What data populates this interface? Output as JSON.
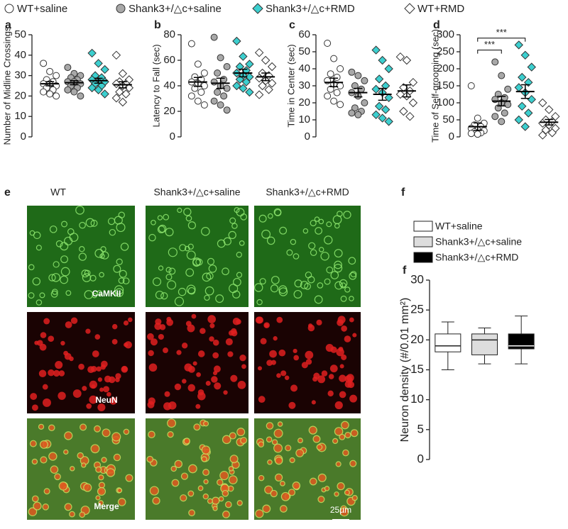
{
  "legend": [
    {
      "name": "WT+saline",
      "color": "#ffffff",
      "marker": "circle"
    },
    {
      "name": "Shank3+/△c+saline",
      "color": "#a8a8a8",
      "marker": "circle"
    },
    {
      "name": "Shank3+/△c+RMD",
      "color": "#3ccfcf",
      "marker": "diamond"
    },
    {
      "name": "WT+RMD",
      "color": "#ffffff",
      "marker": "diamond"
    }
  ],
  "chart_data": [
    {
      "type": "dot",
      "panel": "a",
      "ylabel": "Number of Midline Crossings",
      "ylim": [
        0,
        50
      ],
      "yticks": [
        0,
        10,
        20,
        30,
        40,
        50
      ],
      "groups": [
        {
          "values": [
            36,
            32,
            30,
            28,
            27,
            26,
            26,
            25,
            24,
            23,
            22,
            21,
            20
          ],
          "mean": 26,
          "sem": 1
        },
        {
          "values": [
            34,
            31,
            30,
            29,
            28,
            27,
            27,
            26,
            25,
            24,
            23,
            22,
            20
          ],
          "mean": 26.5,
          "sem": 1
        },
        {
          "values": [
            41,
            36,
            33,
            30,
            29,
            28,
            27,
            27,
            26,
            25,
            24,
            23,
            21
          ],
          "mean": 27.5,
          "sem": 1.2
        },
        {
          "values": [
            40,
            31,
            28,
            27,
            26,
            26,
            25,
            24,
            22,
            21,
            19,
            17
          ],
          "mean": 25.5,
          "sem": 1.5
        }
      ]
    },
    {
      "type": "dot",
      "panel": "b",
      "ylabel": "Latency to Fall (sec)",
      "ylim": [
        0,
        80
      ],
      "yticks": [
        0,
        20,
        40,
        60,
        80
      ],
      "groups": [
        {
          "values": [
            73,
            57,
            50,
            47,
            45,
            43,
            42,
            40,
            38,
            35,
            32,
            28,
            25
          ],
          "mean": 43,
          "sem": 3.5
        },
        {
          "values": [
            78,
            62,
            55,
            50,
            45,
            43,
            40,
            38,
            35,
            32,
            28,
            25,
            21
          ],
          "mean": 42,
          "sem": 4
        },
        {
          "values": [
            75,
            63,
            57,
            55,
            52,
            50,
            48,
            47,
            45,
            43,
            40,
            38,
            35
          ],
          "mean": 50,
          "sem": 3
        },
        {
          "values": [
            66,
            60,
            55,
            50,
            48,
            46,
            44,
            42,
            40,
            37,
            33
          ],
          "mean": 47,
          "sem": 3
        }
      ]
    },
    {
      "type": "dot",
      "panel": "c",
      "ylabel": "Time in Center (sec)",
      "ylim": [
        0,
        60
      ],
      "yticks": [
        0,
        10,
        20,
        30,
        40,
        50,
        60
      ],
      "groups": [
        {
          "values": [
            55,
            46,
            40,
            37,
            35,
            33,
            31,
            30,
            28,
            26,
            24,
            21,
            19
          ],
          "mean": 32,
          "sem": 2.5
        },
        {
          "values": [
            38,
            36,
            33,
            30,
            28,
            26,
            24,
            20,
            17,
            15,
            14,
            13
          ],
          "mean": 26,
          "sem": 2.5
        },
        {
          "values": [
            51,
            45,
            40,
            34,
            30,
            28,
            26,
            23,
            18,
            16,
            13,
            11,
            9
          ],
          "mean": 25,
          "sem": 3.5
        },
        {
          "values": [
            47,
            45,
            32,
            29,
            27,
            25,
            24,
            20,
            15,
            12
          ],
          "mean": 27,
          "sem": 3.5
        }
      ]
    },
    {
      "type": "dot",
      "panel": "d",
      "ylabel": "Time of Self-grooming (sec)",
      "ylim": [
        0,
        300
      ],
      "yticks": [
        0,
        50,
        100,
        150,
        200,
        250,
        300
      ],
      "annotations": [
        {
          "label": "***",
          "from": 0,
          "to": 1,
          "y": 255
        },
        {
          "label": "***",
          "from": 0,
          "to": 2,
          "y": 290
        }
      ],
      "groups": [
        {
          "values": [
            150,
            55,
            40,
            35,
            30,
            25,
            20,
            18,
            15,
            12,
            10,
            8
          ],
          "mean": 30,
          "sem": 11
        },
        {
          "values": [
            220,
            180,
            140,
            125,
            115,
            110,
            100,
            95,
            85,
            70,
            60,
            45
          ],
          "mean": 105,
          "sem": 14
        },
        {
          "values": [
            270,
            240,
            205,
            175,
            160,
            145,
            130,
            110,
            90,
            70,
            50,
            30
          ],
          "mean": 133,
          "sem": 20
        },
        {
          "values": [
            100,
            80,
            60,
            50,
            45,
            40,
            35,
            25,
            20,
            12,
            5
          ],
          "mean": 43,
          "sem": 8
        }
      ]
    },
    {
      "type": "box",
      "panel": "f",
      "ylabel": "Neuron density (#/0.01 mm²)",
      "ylim": [
        0,
        30
      ],
      "yticks": [
        0,
        5,
        10,
        15,
        20,
        25,
        30
      ],
      "series": [
        {
          "name": "WT+saline",
          "color": "#ffffff",
          "min": 15,
          "q1": 18,
          "median": 19,
          "q3": 21,
          "max": 23
        },
        {
          "name": "Shank3+/△c+saline",
          "color": "#dddddd",
          "min": 16,
          "q1": 17.5,
          "median": 20,
          "q3": 21,
          "max": 22
        },
        {
          "name": "Shank3+/△c+RMD",
          "color": "#000000",
          "min": 16,
          "q1": 18.5,
          "median": 19,
          "q3": 21,
          "max": 24
        }
      ]
    }
  ],
  "panel_e": {
    "panel": "e",
    "columns": [
      "WT",
      "Shank3+/△c+saline",
      "Shank3+/△c+RMD"
    ],
    "rows": [
      "CaMKII",
      "NeuN",
      "Merge"
    ],
    "scale_bar": "25µm"
  }
}
